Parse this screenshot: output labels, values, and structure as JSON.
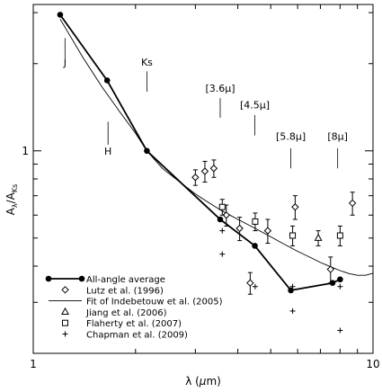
{
  "chart_data": {
    "type": "scatter",
    "xlabel_parts": [
      "λ (",
      "μ",
      "m)"
    ],
    "ylabel": "A_λ/A_Ks",
    "ylabel_parts": {
      "main": "A",
      "sub1": "λ",
      "slash": "/A",
      "sub2": "Ks"
    },
    "x_scale": "log",
    "y_scale": "log",
    "xlim": [
      1,
      10
    ],
    "ylim": [
      0.2,
      3.2
    ],
    "x_ticks": [
      {
        "value": 1,
        "label": "1"
      },
      {
        "value": 10,
        "label": "10"
      }
    ],
    "y_ticks": [
      {
        "value": 1,
        "label": "1"
      }
    ],
    "band_markers": [
      {
        "label": "J",
        "x": 1.24,
        "y_top": 2.45,
        "y_bot": 2.08,
        "label_y": 1.96
      },
      {
        "label": "H",
        "x": 1.66,
        "y_top": 1.26,
        "y_bot": 1.05,
        "label_y": 0.97
      },
      {
        "label": "Ks",
        "x": 2.16,
        "y_top": 1.88,
        "y_bot": 1.6,
        "label_y": 1.97
      },
      {
        "label": "[3.6μ]",
        "x": 3.55,
        "y_top": 1.52,
        "y_bot": 1.3,
        "label_y": 1.6
      },
      {
        "label": "[4.5μ]",
        "x": 4.49,
        "y_top": 1.33,
        "y_bot": 1.13,
        "label_y": 1.4
      },
      {
        "label": "[5.8μ]",
        "x": 5.73,
        "y_top": 1.02,
        "y_bot": 0.87,
        "label_y": 1.09
      },
      {
        "label": "[8μ]",
        "x": 7.87,
        "y_top": 1.02,
        "y_bot": 0.87,
        "label_y": 1.09
      }
    ],
    "series": [
      {
        "name": "All-angle average",
        "marker": "filled-circle",
        "line": true,
        "x": [
          1.2,
          1.65,
          2.16,
          3.55,
          4.49,
          5.73,
          7.6,
          8.0
        ],
        "y": [
          2.95,
          1.75,
          1.0,
          0.58,
          0.47,
          0.33,
          0.35,
          0.36
        ]
      },
      {
        "name": "Lutz et al. (1996)",
        "marker": "diamond",
        "x": [
          3.0,
          3.2,
          3.4,
          3.7,
          4.05,
          4.35,
          4.9,
          5.9,
          7.5,
          8.7
        ],
        "y": [
          0.81,
          0.85,
          0.87,
          0.6,
          0.54,
          0.35,
          0.53,
          0.64,
          0.39,
          0.66
        ],
        "err": [
          0.05,
          0.07,
          0.06,
          0.05,
          0.05,
          0.03,
          0.05,
          0.06,
          0.04,
          0.06
        ]
      },
      {
        "name": "Fit of Indebetouw et al. (2005)",
        "marker": "line",
        "line": true,
        "x": [
          1.2,
          1.4,
          1.6,
          1.8,
          2.0,
          2.16,
          2.4,
          2.7,
          3.0,
          3.3,
          3.6,
          4.0,
          4.5,
          5.0,
          5.5,
          6.0,
          6.5,
          7.0,
          7.5,
          8.0,
          8.5,
          9.0,
          9.5,
          10.0
        ],
        "y": [
          2.85,
          2.1,
          1.65,
          1.36,
          1.15,
          1.0,
          0.87,
          0.78,
          0.71,
          0.66,
          0.62,
          0.58,
          0.54,
          0.505,
          0.475,
          0.45,
          0.43,
          0.412,
          0.398,
          0.386,
          0.377,
          0.372,
          0.372,
          0.378
        ]
      },
      {
        "name": "Jiang et al. (2006)",
        "marker": "triangle",
        "x": [
          6.9
        ],
        "y": [
          0.5
        ],
        "err": [
          0.03
        ]
      },
      {
        "name": "Flaherty et al. (2007)",
        "marker": "square",
        "x": [
          3.6,
          4.5,
          5.8,
          8.0
        ],
        "y": [
          0.64,
          0.57,
          0.51,
          0.51
        ],
        "err": [
          0.04,
          0.04,
          0.04,
          0.04
        ]
      },
      {
        "name": "Chapman et al. (2009)",
        "marker": "plus",
        "x": [
          3.6,
          3.6,
          4.5,
          5.8,
          5.8,
          8.0,
          8.0
        ],
        "y": [
          0.53,
          0.44,
          0.34,
          0.34,
          0.28,
          0.34,
          0.24
        ]
      }
    ]
  }
}
